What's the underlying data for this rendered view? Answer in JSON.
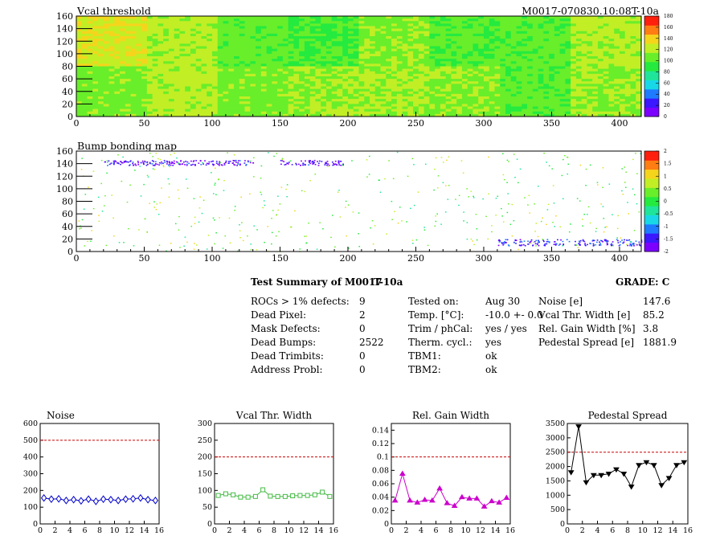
{
  "header": {
    "module_id": "M0017-070830.10:08T-10a"
  },
  "colors": {
    "palette": [
      "#7c00ff",
      "#3b18ff",
      "#1e7bff",
      "#18d8e8",
      "#1fe59a",
      "#25ea3f",
      "#69ee2a",
      "#c2ee25",
      "#f5d51c",
      "#ff7d12",
      "#ff1f0d"
    ],
    "ref_line": "#cc0000",
    "noise": "#0000cc",
    "vcal_width": "#44bb44",
    "gain_width": "#cc00cc",
    "pedestal": "#000000"
  },
  "chart_data": [
    {
      "type": "heatmap",
      "title": "Vcal threshold",
      "xlim": [
        0,
        416
      ],
      "ylim": [
        0,
        160
      ],
      "xticks": [
        "0",
        "50",
        "100",
        "150",
        "200",
        "250",
        "300",
        "350",
        "400"
      ],
      "yticks": [
        "0",
        "20",
        "40",
        "60",
        "80",
        "100",
        "120",
        "140",
        "160"
      ],
      "colorbar": {
        "min": 0,
        "max": 180,
        "ticks": [
          "0",
          "20",
          "40",
          "60",
          "80",
          "100",
          "120",
          "140",
          "160",
          "180"
        ]
      },
      "roc_grid": {
        "cols": 8,
        "rows": 2
      },
      "roc_mean_levels": [
        [
          0.72,
          0.66,
          0.58,
          0.54,
          0.62,
          0.56,
          0.57,
          0.66
        ],
        [
          0.6,
          0.67,
          0.6,
          0.64,
          0.65,
          0.62,
          0.57,
          0.63
        ]
      ]
    },
    {
      "type": "heatmap",
      "title": "Bump bonding map",
      "xlim": [
        0,
        416
      ],
      "ylim": [
        0,
        160
      ],
      "xticks": [
        "0",
        "50",
        "100",
        "150",
        "200",
        "250",
        "300",
        "350",
        "400"
      ],
      "yticks": [
        "0",
        "20",
        "40",
        "60",
        "80",
        "100",
        "120",
        "140",
        "160"
      ],
      "colorbar": {
        "min": -2,
        "max": 2,
        "ticks": [
          "-2",
          "-1.5",
          "-1",
          "-0.5",
          "0",
          "0.5",
          "1",
          "1.5",
          "2"
        ]
      },
      "dense_bands": [
        {
          "x": [
            20,
            130
          ],
          "y": [
            138,
            146
          ],
          "value": -1.6
        },
        {
          "x": [
            150,
            196
          ],
          "y": [
            138,
            146
          ],
          "value": -1.7
        },
        {
          "x": [
            310,
            416
          ],
          "y": [
            10,
            20
          ],
          "value": -1.4
        }
      ]
    },
    {
      "type": "line",
      "title": "Noise",
      "xlim": [
        0,
        16
      ],
      "ylim": [
        0,
        600
      ],
      "xticks": [
        "0",
        "2",
        "4",
        "6",
        "8",
        "10",
        "12",
        "14",
        "16"
      ],
      "yticks": [
        "0",
        "100",
        "200",
        "300",
        "400",
        "500",
        "600"
      ],
      "reference_line": 500,
      "marker": "diamond",
      "x": [
        0.5,
        1.5,
        2.5,
        3.5,
        4.5,
        5.5,
        6.5,
        7.5,
        8.5,
        9.5,
        10.5,
        11.5,
        12.5,
        13.5,
        14.5,
        15.5
      ],
      "values": [
        155,
        148,
        150,
        140,
        145,
        138,
        148,
        135,
        148,
        145,
        140,
        148,
        150,
        155,
        145,
        140
      ]
    },
    {
      "type": "line",
      "title": "Vcal Thr. Width",
      "xlim": [
        0,
        16
      ],
      "ylim": [
        0,
        300
      ],
      "xticks": [
        "0",
        "2",
        "4",
        "6",
        "8",
        "10",
        "12",
        "14",
        "16"
      ],
      "yticks": [
        "0",
        "50",
        "100",
        "150",
        "200",
        "250",
        "300"
      ],
      "reference_line": 200,
      "marker": "square",
      "x": [
        0.5,
        1.5,
        2.5,
        3.5,
        4.5,
        5.5,
        6.5,
        7.5,
        8.5,
        9.5,
        10.5,
        11.5,
        12.5,
        13.5,
        14.5,
        15.5
      ],
      "values": [
        85,
        90,
        87,
        80,
        80,
        82,
        102,
        83,
        82,
        82,
        84,
        85,
        85,
        87,
        95,
        82
      ]
    },
    {
      "type": "line",
      "title": "Rel. Gain Width",
      "xlim": [
        0,
        16
      ],
      "ylim": [
        0,
        0.15
      ],
      "xticks": [
        "0",
        "2",
        "4",
        "6",
        "8",
        "10",
        "12",
        "14",
        "16"
      ],
      "yticks": [
        "0",
        "0.02",
        "0.04",
        "0.06",
        "0.08",
        "0.1",
        "0.12",
        "0.14"
      ],
      "reference_line": 0.1,
      "marker": "triangle",
      "x": [
        0.5,
        1.5,
        2.5,
        3.5,
        4.5,
        5.5,
        6.5,
        7.5,
        8.5,
        9.5,
        10.5,
        11.5,
        12.5,
        13.5,
        14.5,
        15.5
      ],
      "values": [
        0.035,
        0.075,
        0.035,
        0.032,
        0.036,
        0.035,
        0.053,
        0.031,
        0.027,
        0.04,
        0.038,
        0.038,
        0.026,
        0.034,
        0.032,
        0.039
      ]
    },
    {
      "type": "line",
      "title": "Pedestal Spread",
      "xlim": [
        0,
        16
      ],
      "ylim": [
        0,
        3500
      ],
      "xticks": [
        "0",
        "2",
        "4",
        "6",
        "8",
        "10",
        "12",
        "14",
        "16"
      ],
      "yticks": [
        "0",
        "500",
        "1000",
        "1500",
        "2000",
        "2500",
        "3000",
        "3500"
      ],
      "reference_line": 2500,
      "marker": "triangle-down",
      "x": [
        0.5,
        1.5,
        2.5,
        3.5,
        4.5,
        5.5,
        6.5,
        7.5,
        8.5,
        9.5,
        10.5,
        11.5,
        12.5,
        13.5,
        14.5,
        15.5
      ],
      "values": [
        1800,
        3400,
        1450,
        1700,
        1700,
        1750,
        1900,
        1750,
        1300,
        2050,
        2150,
        2050,
        1350,
        1600,
        2050,
        2150
      ]
    }
  ],
  "summary": {
    "title": "Test Summary of M0017",
    "temp_label": "T-10a",
    "grade": "GRADE:  C",
    "col1_labels": [
      "ROCs > 1% defects:",
      "Dead Pixel:",
      "Mask Defects:",
      "Dead Bumps:",
      "Dead Trimbits:",
      "Address Probl:"
    ],
    "col1_values": [
      "9",
      "2",
      "0",
      "2522",
      "0",
      "0"
    ],
    "col2_labels": [
      "Tested on:",
      "Temp. [°C]:",
      "Trim / phCal:",
      "Therm. cycl.:",
      "TBM1:",
      "TBM2:"
    ],
    "col2_values": [
      "Aug 30",
      "-10.0 +- 0.0",
      "yes / yes",
      "yes",
      "ok",
      "ok"
    ],
    "col3_labels": [
      "Noise [e]",
      "Vcal Thr. Width [e]",
      "Rel. Gain Width [%]",
      "Pedestal Spread [e]"
    ],
    "col3_values": [
      "147.6",
      "85.2",
      "3.8",
      "1881.9"
    ]
  }
}
